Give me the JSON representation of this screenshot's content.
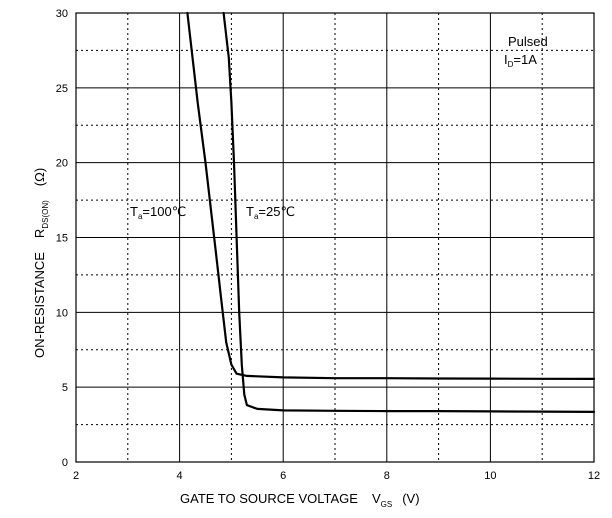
{
  "chart_data": {
    "type": "line",
    "title": "",
    "xlabel": {
      "main": "GATE TO SOURCE VOLTAGE",
      "symbol": "V",
      "sub": "GS",
      "unit": "(V)"
    },
    "ylabel": {
      "main": "ON-RESISTANCE",
      "symbol": "R",
      "sub": "DS(ON)",
      "unit": "(Ω)"
    },
    "xlim": [
      2,
      12
    ],
    "ylim": [
      0,
      30
    ],
    "x_ticks": [
      2,
      4,
      6,
      8,
      10,
      12
    ],
    "y_ticks": [
      0,
      5,
      10,
      15,
      20,
      25,
      30
    ],
    "grid": {
      "x_major_step": 2,
      "x_minor_step": 1,
      "y_major_step": 5,
      "y_minor_step": 2.5
    },
    "annotations": {
      "conditions": {
        "line1": "Pulsed",
        "line2_symbol": "I",
        "line2_sub": "D",
        "line2_rest": "=1A"
      }
    },
    "series": [
      {
        "label_symbol": "T",
        "label_sub": "a",
        "label_rest": "=100℃",
        "x": [
          4.15,
          4.35,
          4.5,
          4.6,
          4.7,
          4.8,
          4.9,
          5.0,
          5.1,
          5.3,
          6,
          7,
          8,
          9,
          10,
          11,
          12
        ],
        "y": [
          30,
          24,
          20,
          17,
          14,
          11,
          8,
          6.5,
          5.9,
          5.75,
          5.65,
          5.6,
          5.6,
          5.58,
          5.57,
          5.56,
          5.55
        ]
      },
      {
        "label_symbol": "T",
        "label_sub": "a",
        "label_rest": "=25℃",
        "x": [
          4.85,
          4.95,
          5.0,
          5.05,
          5.1,
          5.15,
          5.2,
          5.25,
          5.3,
          5.5,
          6,
          7,
          8,
          9,
          10,
          11,
          12
        ],
        "y": [
          30,
          27,
          24,
          20,
          15,
          10,
          6.5,
          4.5,
          3.8,
          3.55,
          3.45,
          3.42,
          3.4,
          3.4,
          3.38,
          3.37,
          3.35
        ]
      }
    ]
  }
}
